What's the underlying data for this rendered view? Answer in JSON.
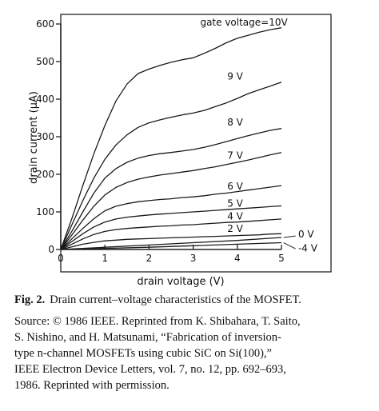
{
  "chart_data": {
    "type": "line",
    "xlabel": "drain voltage (V)",
    "ylabel": "drain current (μA)",
    "xlim": [
      0,
      5.4
    ],
    "ylim": [
      0,
      620
    ],
    "x_ticks": [
      "0",
      "1",
      "2",
      "3",
      "4",
      "5"
    ],
    "y_ticks": [
      "0",
      "100",
      "200",
      "300",
      "400",
      "500",
      "600"
    ],
    "grid": false,
    "series": [
      {
        "name": "gate voltage=10V",
        "x": [
          0,
          0.25,
          0.5,
          0.75,
          1,
          1.25,
          1.5,
          1.75,
          2,
          2.25,
          2.5,
          2.75,
          3,
          3.25,
          3.5,
          3.75,
          4,
          4.25,
          4.5,
          4.75,
          5
        ],
        "y": [
          0,
          82,
          170,
          255,
          330,
          395,
          440,
          468,
          480,
          490,
          498,
          505,
          510,
          522,
          535,
          550,
          562,
          570,
          578,
          585,
          590
        ]
      },
      {
        "name": "9V",
        "x": [
          0,
          0.25,
          0.5,
          0.75,
          1,
          1.25,
          1.5,
          1.75,
          2,
          2.25,
          2.5,
          2.75,
          3,
          3.25,
          3.5,
          3.75,
          4,
          4.25,
          4.5,
          4.75,
          5
        ],
        "y": [
          0,
          65,
          130,
          190,
          240,
          278,
          305,
          325,
          337,
          345,
          352,
          358,
          363,
          370,
          380,
          390,
          402,
          415,
          425,
          435,
          445
        ]
      },
      {
        "name": "8V",
        "x": [
          0,
          0.25,
          0.5,
          0.75,
          1,
          1.25,
          1.5,
          1.75,
          2,
          2.25,
          2.5,
          2.75,
          3,
          3.25,
          3.5,
          3.75,
          4,
          4.25,
          4.5,
          4.75,
          5
        ],
        "y": [
          0,
          48,
          100,
          150,
          190,
          215,
          232,
          243,
          250,
          255,
          258,
          262,
          266,
          272,
          279,
          287,
          295,
          303,
          310,
          317,
          322
        ]
      },
      {
        "name": "7V",
        "x": [
          0,
          0.25,
          0.5,
          0.75,
          1,
          1.25,
          1.5,
          1.75,
          2,
          2.25,
          2.5,
          2.75,
          3,
          3.25,
          3.5,
          3.75,
          4,
          4.25,
          4.5,
          4.75,
          5
        ],
        "y": [
          0,
          38,
          78,
          115,
          145,
          165,
          178,
          187,
          193,
          198,
          202,
          206,
          210,
          215,
          220,
          226,
          232,
          238,
          245,
          252,
          258
        ]
      },
      {
        "name": "6V",
        "x": [
          0,
          0.25,
          0.5,
          0.75,
          1,
          1.25,
          1.5,
          1.75,
          2,
          2.25,
          2.5,
          2.75,
          3,
          3.25,
          3.5,
          3.75,
          4,
          4.25,
          4.5,
          4.75,
          5
        ],
        "y": [
          0,
          28,
          56,
          82,
          103,
          115,
          122,
          127,
          130,
          133,
          135,
          138,
          140,
          143,
          147,
          150,
          154,
          158,
          162,
          166,
          170
        ]
      },
      {
        "name": "5V",
        "x": [
          0,
          0.25,
          0.5,
          0.75,
          1,
          1.25,
          1.5,
          1.75,
          2,
          2.25,
          2.5,
          2.75,
          3,
          3.25,
          3.5,
          3.75,
          4,
          4.25,
          4.5,
          4.75,
          5
        ],
        "y": [
          0,
          21,
          42,
          60,
          73,
          81,
          86,
          89,
          92,
          94,
          96,
          98,
          100,
          102,
          104,
          106,
          108,
          110,
          112,
          114,
          116
        ]
      },
      {
        "name": "4V",
        "x": [
          0,
          0.25,
          0.5,
          0.75,
          1,
          1.25,
          1.5,
          1.75,
          2,
          2.25,
          2.5,
          2.75,
          3,
          3.25,
          3.5,
          3.75,
          4,
          4.25,
          4.5,
          4.75,
          5
        ],
        "y": [
          0,
          14,
          28,
          40,
          48,
          53,
          56,
          58,
          60,
          62,
          63,
          65,
          66,
          68,
          70,
          72,
          73,
          75,
          77,
          79,
          81
        ]
      },
      {
        "name": "2V",
        "x": [
          0,
          0.25,
          0.5,
          0.75,
          1,
          1.25,
          1.5,
          1.75,
          2,
          2.25,
          2.5,
          2.75,
          3,
          3.25,
          3.5,
          3.75,
          4,
          4.25,
          4.5,
          4.75,
          5
        ],
        "y": [
          0,
          7,
          14,
          19,
          23,
          25,
          27,
          28,
          29,
          30,
          31,
          32,
          33,
          34,
          35,
          36,
          37,
          38,
          39,
          41,
          42
        ]
      },
      {
        "name": "0V",
        "x": [
          0,
          1,
          2,
          3,
          4,
          5
        ],
        "y": [
          0,
          6,
          12,
          18,
          24,
          32
        ]
      },
      {
        "name": "-4V",
        "x": [
          0,
          1,
          2,
          3,
          4,
          5
        ],
        "y": [
          0,
          3,
          6,
          10,
          14,
          18
        ]
      }
    ]
  },
  "caption": {
    "figure_number": "Fig. 2.",
    "text": "Drain current–voltage characteristics of the MOSFET."
  },
  "source": {
    "lines": [
      "Source: © 1986 IEEE. Reprinted from K. Shibahara, T. Saito,",
      "S. Nishino, and H. Matsunami, “Fabrication of inversion-",
      "type n-channel MOSFETs using cubic SiC on Si(100),”",
      "IEEE Electron Device Letters, vol. 7, no. 12, pp. 692–693,",
      "1986. Reprinted with permission."
    ]
  }
}
